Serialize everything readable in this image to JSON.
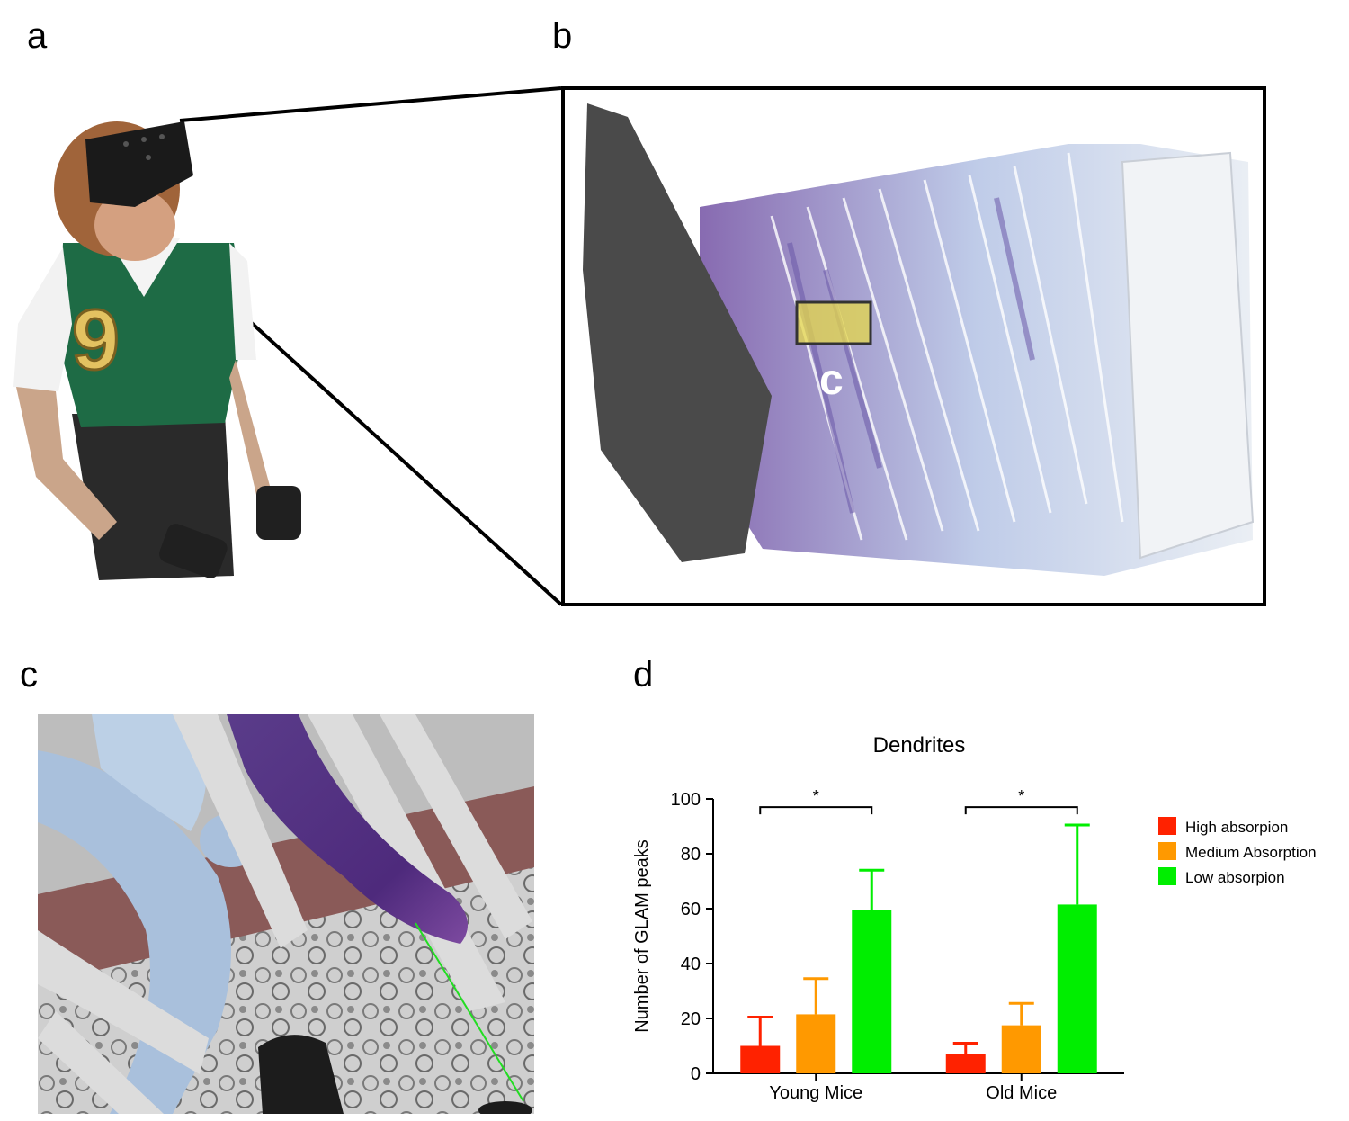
{
  "panels": {
    "a": "a",
    "b": "b",
    "c": "c",
    "d": "d"
  },
  "panel_b_marker": "c",
  "colors": {
    "high": "#ff2200",
    "medium": "#ff9900",
    "low": "#00ee00",
    "axis": "#000000",
    "highlight": "#e6d84a",
    "neurite_purple": "#6a58a8",
    "neurite_white": "#dfe6ee"
  },
  "chart_data": {
    "type": "bar",
    "title": "Dendrites",
    "ylabel": "Number of GLAM peaks",
    "xlabel": "",
    "ylim": [
      0,
      100
    ],
    "yticks": [
      0,
      20,
      40,
      60,
      80,
      100
    ],
    "categories": [
      "Young Mice",
      "Old Mice"
    ],
    "series": [
      {
        "name": "High absorpion",
        "color": "#ff2200",
        "values": [
          10,
          7
        ],
        "errors": [
          20.5,
          11
        ]
      },
      {
        "name": "Medium Absorption",
        "color": "#ff9900",
        "values": [
          21.5,
          17.5
        ],
        "errors": [
          34.5,
          25.5
        ]
      },
      {
        "name": "Low absorpion",
        "color": "#00ee00",
        "values": [
          59.5,
          61.5
        ],
        "errors": [
          74,
          90.5
        ]
      }
    ],
    "significance": [
      {
        "category": "Young Mice",
        "label": "*"
      },
      {
        "category": "Old Mice",
        "label": "*"
      }
    ],
    "legend_position": "right"
  }
}
